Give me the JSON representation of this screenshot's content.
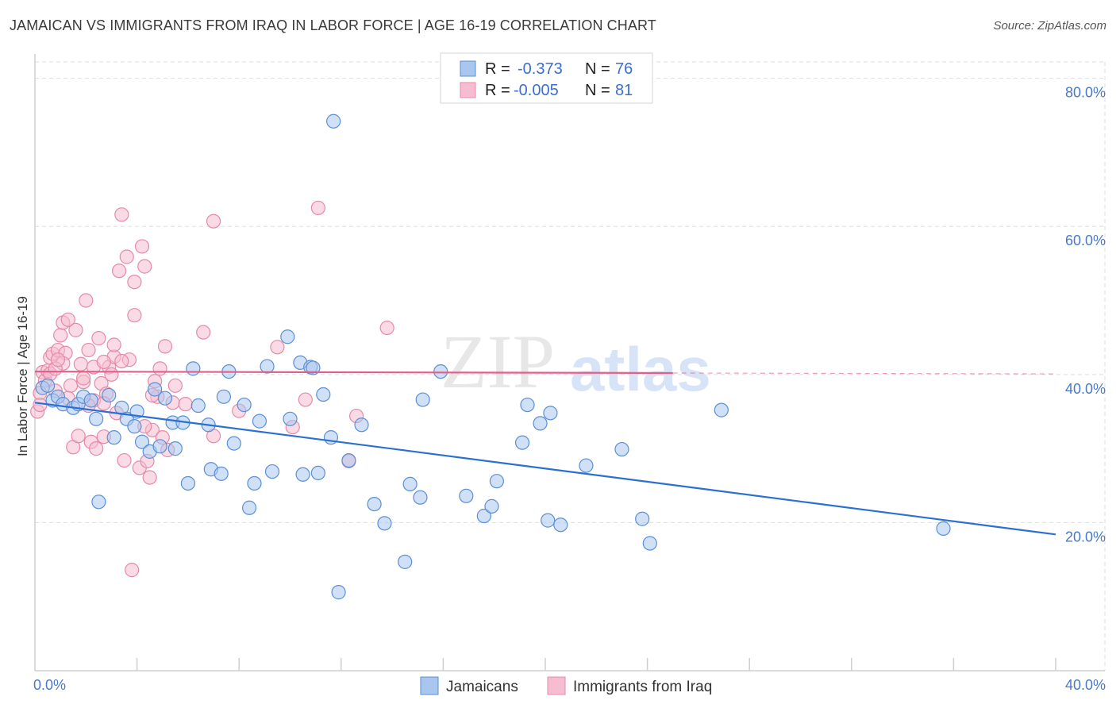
{
  "title": "JAMAICAN VS IMMIGRANTS FROM IRAQ IN LABOR FORCE | AGE 16-19 CORRELATION CHART",
  "source": "Source: ZipAtlas.com",
  "watermark": {
    "zip": "ZIP",
    "atlas": "atlas"
  },
  "colors": {
    "blue_fill": "#a9c6ef",
    "blue_stroke": "#5b8fd6",
    "blue_line": "#2a6fd1",
    "pink_fill": "#f6bdd0",
    "pink_stroke": "#e58aa8",
    "pink_line": "#e0608a",
    "grid": "#dddddd",
    "tick_label": "#4a78c8"
  },
  "legend": {
    "rows": [
      {
        "r_label": "R =",
        "r_value": "-0.373",
        "n_label": "N =",
        "n_value": "76"
      },
      {
        "r_label": "R =",
        "r_value": "-0.005",
        "n_label": "N =",
        "n_value": "81"
      }
    ]
  },
  "bottom_legend": {
    "series1": "Jamaicans",
    "series2": "Immigrants from Iraq"
  },
  "chart_data": {
    "type": "scatter",
    "title": "JAMAICAN VS IMMIGRANTS FROM IRAQ IN LABOR FORCE | AGE 16-19 CORRELATION CHART",
    "xlabel": "",
    "ylabel": "In Labor Force | Age 16-19",
    "xlim": [
      0,
      40
    ],
    "ylim": [
      0,
      82
    ],
    "x_tick_labels": [
      "0.0%",
      "40.0%"
    ],
    "y_ticks": [
      20,
      40,
      60,
      80
    ],
    "y_tick_labels": [
      "20.0%",
      "40.0%",
      "60.0%",
      "80.0%"
    ],
    "grid": true,
    "series": [
      {
        "name": "Jamaicans",
        "r": -0.373,
        "n": 76,
        "trend": {
          "x0": 0,
          "y0": 36.2,
          "x1": 40,
          "y1": 18.4
        },
        "points": [
          [
            0.3,
            38.2
          ],
          [
            0.5,
            38.5
          ],
          [
            0.7,
            36.5
          ],
          [
            0.9,
            37.0
          ],
          [
            1.1,
            36.0
          ],
          [
            1.5,
            35.5
          ],
          [
            1.7,
            36.0
          ],
          [
            1.9,
            37.0
          ],
          [
            2.2,
            36.5
          ],
          [
            2.4,
            34.0
          ],
          [
            2.5,
            22.8
          ],
          [
            2.9,
            37.2
          ],
          [
            3.1,
            31.5
          ],
          [
            3.4,
            35.5
          ],
          [
            3.6,
            34.0
          ],
          [
            3.9,
            33.0
          ],
          [
            4.0,
            35.0
          ],
          [
            4.2,
            30.9
          ],
          [
            4.5,
            29.6
          ],
          [
            4.7,
            38.0
          ],
          [
            4.9,
            30.3
          ],
          [
            5.1,
            36.8
          ],
          [
            5.4,
            33.5
          ],
          [
            5.5,
            30.0
          ],
          [
            5.8,
            33.5
          ],
          [
            6.0,
            25.3
          ],
          [
            6.2,
            40.8
          ],
          [
            6.4,
            35.8
          ],
          [
            6.8,
            33.2
          ],
          [
            6.9,
            27.2
          ],
          [
            7.3,
            26.6
          ],
          [
            7.4,
            37.0
          ],
          [
            7.6,
            40.4
          ],
          [
            7.8,
            30.7
          ],
          [
            8.2,
            35.9
          ],
          [
            8.4,
            22.0
          ],
          [
            8.6,
            25.3
          ],
          [
            8.8,
            33.7
          ],
          [
            9.1,
            41.1
          ],
          [
            9.3,
            26.9
          ],
          [
            9.9,
            45.1
          ],
          [
            10.0,
            34.0
          ],
          [
            10.4,
            41.6
          ],
          [
            10.5,
            26.5
          ],
          [
            10.8,
            41.0
          ],
          [
            11.1,
            26.7
          ],
          [
            11.3,
            37.3
          ],
          [
            11.6,
            31.5
          ],
          [
            11.9,
            10.6
          ],
          [
            11.7,
            74.2
          ],
          [
            12.3,
            28.4
          ],
          [
            12.8,
            33.2
          ],
          [
            13.3,
            22.5
          ],
          [
            13.7,
            19.9
          ],
          [
            14.5,
            14.7
          ],
          [
            14.7,
            25.2
          ],
          [
            15.1,
            23.4
          ],
          [
            15.2,
            36.6
          ],
          [
            15.9,
            40.4
          ],
          [
            16.9,
            23.6
          ],
          [
            17.6,
            20.9
          ],
          [
            17.9,
            22.2
          ],
          [
            18.1,
            25.6
          ],
          [
            19.1,
            30.8
          ],
          [
            19.3,
            35.9
          ],
          [
            19.8,
            33.4
          ],
          [
            20.1,
            20.3
          ],
          [
            20.2,
            34.8
          ],
          [
            20.6,
            19.7
          ],
          [
            21.6,
            27.7
          ],
          [
            23.0,
            29.9
          ],
          [
            23.8,
            20.5
          ],
          [
            24.1,
            17.2
          ],
          [
            26.9,
            35.2
          ],
          [
            35.6,
            19.2
          ],
          [
            10.9,
            40.9
          ]
        ]
      },
      {
        "name": "Immigrants from Iraq",
        "r": -0.005,
        "n": 81,
        "trend": {
          "x0": 0,
          "y0": 40.4,
          "x1": 25,
          "y1": 40.2,
          "dash_to_x": 40
        },
        "points": [
          [
            0.1,
            35.0
          ],
          [
            0.2,
            37.5
          ],
          [
            0.3,
            40.3
          ],
          [
            0.4,
            39.2
          ],
          [
            0.5,
            40.5
          ],
          [
            0.6,
            42.3
          ],
          [
            0.6,
            40.1
          ],
          [
            0.7,
            42.8
          ],
          [
            0.8,
            37.8
          ],
          [
            0.9,
            43.3
          ],
          [
            1.0,
            45.3
          ],
          [
            1.1,
            47.0
          ],
          [
            1.2,
            42.9
          ],
          [
            1.3,
            47.4
          ],
          [
            1.4,
            38.5
          ],
          [
            1.5,
            30.2
          ],
          [
            1.6,
            46.0
          ],
          [
            1.7,
            31.7
          ],
          [
            1.8,
            41.4
          ],
          [
            1.9,
            39.0
          ],
          [
            2.0,
            50.0
          ],
          [
            2.1,
            43.3
          ],
          [
            2.2,
            30.9
          ],
          [
            2.3,
            41.0
          ],
          [
            2.4,
            30.0
          ],
          [
            2.5,
            44.9
          ],
          [
            2.6,
            38.8
          ],
          [
            2.7,
            31.6
          ],
          [
            2.8,
            37.4
          ],
          [
            2.9,
            41.0
          ],
          [
            3.0,
            40.0
          ],
          [
            3.1,
            42.4
          ],
          [
            3.2,
            34.8
          ],
          [
            3.3,
            54.0
          ],
          [
            3.4,
            61.6
          ],
          [
            3.5,
            28.4
          ],
          [
            3.6,
            55.9
          ],
          [
            3.7,
            42.0
          ],
          [
            3.8,
            13.6
          ],
          [
            3.9,
            48.0
          ],
          [
            3.9,
            52.5
          ],
          [
            4.1,
            27.4
          ],
          [
            4.2,
            57.3
          ],
          [
            4.3,
            54.6
          ],
          [
            4.4,
            28.3
          ],
          [
            4.5,
            26.1
          ],
          [
            4.6,
            32.5
          ],
          [
            4.7,
            39.1
          ],
          [
            4.8,
            37.0
          ],
          [
            4.9,
            40.8
          ],
          [
            5.0,
            31.5
          ],
          [
            5.1,
            43.8
          ],
          [
            5.2,
            29.8
          ],
          [
            5.4,
            36.2
          ],
          [
            5.5,
            38.5
          ],
          [
            5.9,
            36.0
          ],
          [
            6.6,
            45.7
          ],
          [
            7.0,
            31.7
          ],
          [
            7.0,
            60.7
          ],
          [
            8.0,
            35.1
          ],
          [
            9.5,
            43.7
          ],
          [
            10.1,
            32.9
          ],
          [
            10.6,
            36.6
          ],
          [
            11.1,
            62.5
          ],
          [
            12.3,
            28.3
          ],
          [
            13.8,
            46.3
          ],
          [
            12.6,
            34.4
          ],
          [
            4.6,
            37.2
          ],
          [
            4.3,
            33.0
          ],
          [
            2.3,
            36.5
          ],
          [
            1.1,
            41.5
          ],
          [
            0.8,
            40.8
          ],
          [
            3.1,
            44.0
          ],
          [
            2.7,
            41.7
          ],
          [
            1.9,
            39.5
          ],
          [
            0.9,
            42.0
          ],
          [
            1.3,
            36.8
          ],
          [
            2.1,
            35.8
          ],
          [
            3.4,
            41.8
          ],
          [
            2.7,
            36.1
          ],
          [
            0.2,
            35.9
          ]
        ]
      }
    ]
  }
}
